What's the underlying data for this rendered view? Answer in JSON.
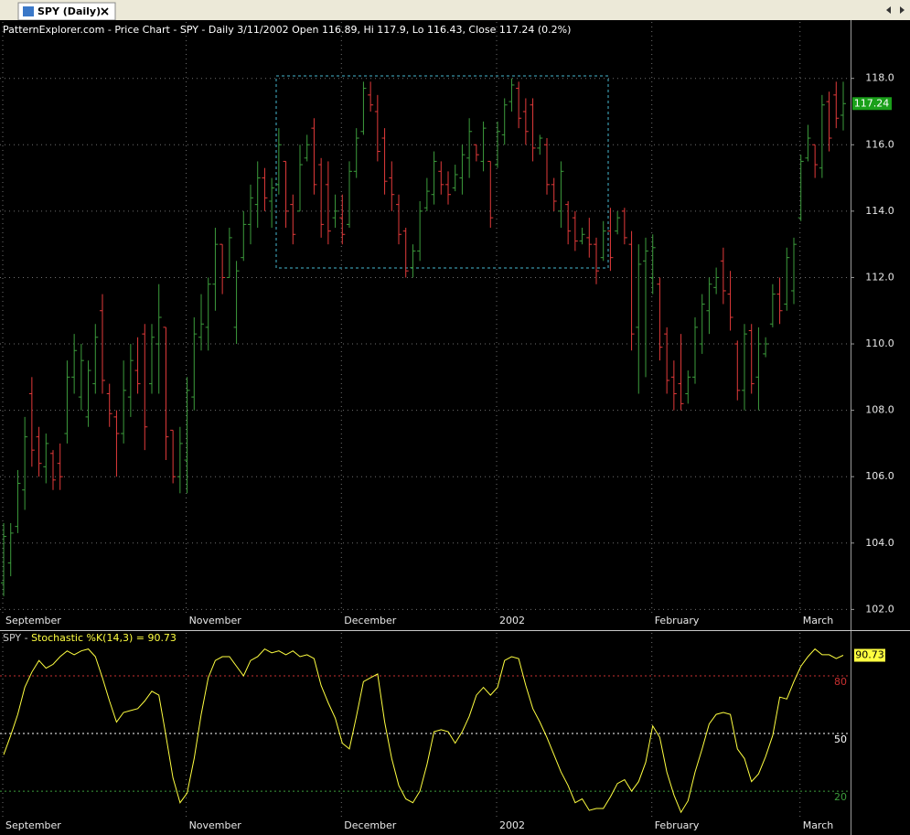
{
  "window": {
    "tab": "SPY (Daily)"
  },
  "chart_data": [
    {
      "type": "ohlc",
      "title": "PatternExplorer.com - Price Chart - SPY - Daily 3/11/2002 Open 116.89, Hi 117.9, Lo 116.43, Close 117.24 (0.2%)",
      "categories": [
        "September",
        null,
        null,
        null,
        null,
        null,
        null,
        null,
        null,
        null,
        null,
        null,
        null,
        null,
        null,
        null,
        null,
        null,
        null,
        null,
        null,
        null,
        null,
        null,
        null,
        null,
        "November",
        null,
        null,
        null,
        null,
        null,
        null,
        null,
        null,
        null,
        null,
        null,
        null,
        null,
        null,
        null,
        null,
        null,
        null,
        null,
        null,
        null,
        "December",
        null,
        null,
        null,
        null,
        null,
        null,
        null,
        null,
        null,
        null,
        null,
        null,
        null,
        null,
        null,
        null,
        null,
        null,
        null,
        null,
        null,
        "2002",
        null,
        null,
        null,
        null,
        null,
        null,
        null,
        null,
        null,
        null,
        null,
        null,
        null,
        null,
        null,
        null,
        null,
        null,
        null,
        null,
        null,
        "February",
        null,
        null,
        null,
        null,
        null,
        null,
        null,
        null,
        null,
        null,
        null,
        null,
        null,
        null,
        null,
        null,
        null,
        null,
        null,
        null,
        "March",
        null,
        null,
        null,
        null,
        null,
        null
      ],
      "open": [
        102.8,
        103.4,
        104.5,
        105.6,
        108.5,
        107.2,
        106.3,
        106.7,
        106.4,
        107.3,
        109.0,
        108.4,
        107.8,
        108.8,
        111.0,
        108.5,
        107.8,
        107.3,
        108.4,
        109.2,
        110.3,
        108.8,
        110.0,
        110.5,
        107.4,
        106.0,
        106.5,
        108.4,
        110.2,
        110.5,
        111.8,
        113.0,
        112.0,
        110.5,
        112.6,
        113.6,
        114.2,
        115.0,
        114.3,
        114.8,
        115.5,
        114.2,
        114.0,
        115.6,
        116.5,
        115.4,
        114.8,
        113.8,
        113.8,
        113.6,
        115.2,
        116.4,
        117.5,
        117.0,
        116.2,
        115.0,
        114.2,
        113.4,
        112.3,
        112.8,
        114.1,
        114.5,
        115.2,
        114.8,
        114.7,
        115.0,
        115.6,
        116.0,
        115.5,
        115.5,
        115.4,
        116.3,
        117.3,
        117.7,
        117.0,
        117.2,
        115.9,
        116.0,
        114.8,
        114.0,
        114.2,
        113.8,
        113.1,
        113.2,
        113.0,
        112.6,
        113.4,
        113.4,
        114.0,
        113.0,
        110.5,
        112.5,
        112.0,
        111.8,
        110.3,
        109.0,
        108.8,
        108.5,
        109.0,
        110.0,
        111.0,
        111.7,
        112.5,
        111.5,
        110.0,
        108.6,
        110.4,
        109.0,
        109.7,
        110.6,
        111.5,
        111.2,
        111.6,
        113.8,
        115.6,
        116.0,
        115.3,
        117.3,
        117.5,
        116.89
      ],
      "high": [
        104.6,
        104.6,
        106.2,
        107.8,
        109.0,
        107.5,
        107.3,
        106.8,
        107.0,
        109.5,
        110.3,
        110.0,
        109.5,
        110.6,
        111.5,
        108.8,
        108.0,
        109.5,
        110.0,
        110.2,
        110.6,
        110.6,
        111.8,
        110.5,
        107.4,
        107.5,
        109.0,
        110.8,
        111.5,
        112.0,
        113.5,
        113.0,
        113.5,
        112.5,
        114.0,
        114.8,
        115.5,
        115.3,
        115.0,
        116.5,
        115.5,
        114.5,
        116.0,
        116.3,
        116.8,
        115.6,
        115.5,
        114.5,
        114.5,
        115.5,
        116.5,
        117.9,
        117.9,
        117.5,
        116.5,
        115.5,
        114.5,
        113.5,
        113.0,
        114.3,
        115.0,
        115.8,
        115.5,
        115.2,
        115.4,
        116.0,
        116.8,
        116.0,
        116.7,
        115.5,
        116.7,
        117.4,
        118.0,
        117.9,
        117.4,
        117.4,
        116.3,
        116.2,
        115.0,
        115.5,
        114.3,
        114.0,
        113.5,
        113.8,
        113.2,
        113.7,
        114.1,
        114.0,
        114.1,
        113.4,
        113.0,
        113.2,
        113.3,
        112.0,
        110.5,
        109.5,
        110.3,
        109.2,
        110.8,
        111.5,
        112.0,
        112.3,
        112.9,
        112.2,
        110.1,
        110.6,
        110.6,
        110.5,
        110.2,
        111.8,
        112.0,
        112.9,
        113.2,
        115.7,
        116.6,
        116.0,
        117.5,
        117.6,
        117.9,
        117.9
      ],
      "low": [
        102.4,
        103.0,
        104.3,
        105.0,
        106.3,
        106.0,
        105.8,
        105.6,
        105.6,
        107.0,
        108.5,
        108.0,
        107.5,
        108.5,
        108.5,
        107.5,
        106.0,
        107.0,
        107.8,
        108.5,
        106.8,
        108.5,
        108.5,
        106.5,
        105.8,
        105.5,
        105.5,
        108.0,
        109.8,
        109.8,
        111.0,
        111.5,
        112.0,
        110.0,
        112.5,
        113.0,
        113.5,
        114.0,
        113.5,
        114.5,
        113.5,
        113.0,
        114.0,
        115.5,
        114.5,
        113.2,
        113.0,
        113.5,
        113.0,
        113.5,
        115.0,
        116.3,
        117.0,
        115.5,
        114.5,
        114.0,
        113.0,
        112.0,
        112.0,
        112.5,
        114.0,
        114.2,
        114.5,
        114.2,
        114.6,
        114.5,
        115.0,
        115.5,
        115.2,
        113.5,
        115.3,
        116.0,
        117.0,
        116.5,
        116.0,
        115.5,
        115.7,
        114.5,
        114.0,
        113.5,
        113.0,
        112.8,
        113.0,
        112.6,
        111.8,
        112.5,
        112.2,
        113.3,
        113.0,
        109.8,
        108.5,
        109.0,
        111.5,
        109.5,
        108.5,
        108.0,
        108.0,
        108.2,
        108.8,
        109.7,
        110.3,
        111.5,
        111.2,
        110.4,
        108.3,
        108.0,
        108.5,
        108.0,
        109.6,
        110.5,
        110.6,
        111.0,
        111.2,
        113.7,
        115.5,
        115.0,
        115.0,
        115.8,
        116.5,
        116.43
      ],
      "close": [
        104.2,
        104.3,
        105.8,
        107.2,
        106.8,
        106.4,
        107.0,
        105.9,
        106.0,
        109.0,
        109.8,
        109.5,
        109.2,
        110.2,
        108.9,
        107.9,
        107.3,
        108.6,
        109.5,
        108.8,
        107.5,
        110.2,
        110.8,
        107.2,
        106.0,
        107.0,
        108.6,
        110.3,
        110.6,
        111.8,
        113.0,
        112.0,
        113.2,
        112.2,
        113.6,
        114.4,
        115.0,
        114.4,
        114.7,
        116.0,
        114.0,
        113.3,
        115.4,
        116.0,
        114.8,
        113.6,
        113.4,
        114.0,
        113.3,
        115.2,
        116.2,
        117.7,
        117.2,
        115.8,
        114.9,
        114.5,
        113.3,
        112.2,
        112.8,
        114.0,
        114.6,
        115.5,
        114.8,
        114.5,
        115.1,
        115.7,
        116.4,
        115.7,
        116.5,
        113.8,
        116.4,
        117.2,
        117.8,
        116.8,
        116.4,
        115.9,
        116.2,
        114.8,
        114.3,
        115.2,
        113.4,
        113.1,
        113.3,
        113.0,
        112.2,
        113.4,
        112.6,
        113.8,
        113.2,
        110.3,
        112.4,
        112.8,
        112.9,
        109.9,
        108.9,
        108.5,
        108.2,
        109.0,
        110.5,
        111.2,
        111.8,
        112.0,
        111.6,
        110.8,
        108.6,
        110.3,
        108.8,
        110.0,
        110.0,
        111.5,
        111.0,
        112.6,
        113.0,
        115.5,
        116.2,
        115.4,
        117.2,
        116.2,
        116.8,
        117.24
      ],
      "up_color": "#3c9c3c",
      "down_color": "#e23a3a",
      "last_color": "#1aa01a",
      "ylim": [
        101.9,
        119.7
      ],
      "yticks": [
        {
          "value": 102,
          "label": "102.0"
        },
        {
          "value": 104,
          "label": "104.0"
        },
        {
          "value": 106,
          "label": "106.0"
        },
        {
          "value": 108,
          "label": "108.0"
        },
        {
          "value": 110,
          "label": "110.0"
        },
        {
          "value": 112,
          "label": "112.0"
        },
        {
          "value": 114,
          "label": "114.0"
        },
        {
          "value": 116,
          "label": "116.0"
        },
        {
          "value": 118,
          "label": "118.0"
        }
      ],
      "grid": true
    },
    {
      "type": "line",
      "title": [
        "SPY - ",
        "Stochastic %K(14,3) = 90.73"
      ],
      "values": [
        39,
        49,
        60,
        74,
        82,
        88,
        84,
        86,
        90,
        93,
        91,
        93,
        94,
        90,
        79,
        67,
        56,
        61,
        62,
        63,
        67,
        72,
        70,
        49,
        27,
        14,
        19,
        37,
        60,
        79,
        88,
        90,
        90,
        85,
        80,
        88,
        90,
        94,
        92,
        93,
        91,
        93,
        90,
        91,
        89,
        75,
        66,
        58,
        45,
        42,
        59,
        77,
        79,
        81,
        56,
        37,
        23,
        16,
        14,
        20,
        34,
        51,
        52,
        51,
        45,
        51,
        59,
        70,
        74,
        70,
        74,
        88,
        90,
        89,
        75,
        63,
        56,
        48,
        39,
        30,
        23,
        14,
        16,
        10,
        11,
        11,
        17,
        24,
        26,
        20,
        25,
        35,
        54,
        48,
        30,
        18,
        9,
        15,
        30,
        42,
        55,
        60,
        61,
        60,
        42,
        37,
        25,
        29,
        38,
        49,
        69,
        68,
        77,
        85,
        90,
        94,
        91,
        91,
        89,
        90.73
      ],
      "color": "#ffff40",
      "ylim": [
        6.7,
        102.4
      ],
      "yticks": [
        20,
        50,
        80
      ],
      "ytick_colors": [
        "#3c9c3c",
        "#ffffff",
        "#c83030"
      ]
    }
  ]
}
